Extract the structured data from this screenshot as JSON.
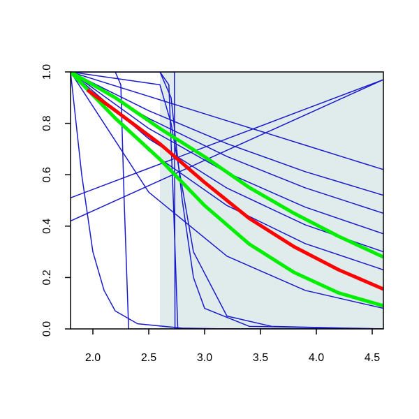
{
  "chart_data": {
    "type": "line",
    "xlim": [
      1.8,
      4.6
    ],
    "ylim": [
      0,
      1
    ],
    "xticks": [
      {
        "value": 2,
        "label": "2.0"
      },
      2.5,
      {
        "value": 3,
        "label": "3.0"
      },
      3.5,
      {
        "value": 4,
        "label": "4.0"
      },
      4.5
    ],
    "yticks": [
      {
        "value": 0,
        "label": "0.0"
      },
      0.2,
      0.4,
      0.6,
      0.8,
      {
        "value": 1,
        "label": "1.0"
      }
    ],
    "shaded_region": [
      2.6,
      4.6
    ],
    "shaded_color": "#e0ecec",
    "series": [
      {
        "color": "#1a1acc",
        "linewidth": 1.5,
        "x": [
          1.8,
          2.5,
          3.2,
          3.9,
          4.6
        ],
        "values": [
          1,
          0.905,
          0.81,
          0.715,
          0.62
        ]
      },
      {
        "color": "#1a1acc",
        "linewidth": 1.5,
        "x": [
          1.8,
          2.5,
          3.2,
          3.9,
          4.6
        ],
        "values": [
          1,
          0.849,
          0.721,
          0.612,
          0.52
        ]
      },
      {
        "color": "#1a1acc",
        "linewidth": 1.5,
        "x": [
          1.8,
          2.5,
          3.2,
          3.9,
          4.6
        ],
        "values": [
          1,
          0.819,
          0.671,
          0.549,
          0.45
        ]
      },
      {
        "color": "#1a1acc",
        "linewidth": 1.5,
        "x": [
          1.8,
          2.5,
          3.2,
          3.9,
          4.6
        ],
        "values": [
          1,
          0.78,
          0.608,
          0.474,
          0.37
        ]
      },
      {
        "color": "#1a1acc",
        "linewidth": 1.5,
        "x": [
          1.8,
          2.5,
          3.2,
          3.9,
          4.6
        ],
        "values": [
          1,
          0.74,
          0.548,
          0.405,
          0.3
        ]
      },
      {
        "color": "#1a1acc",
        "linewidth": 1.5,
        "x": [
          1.8,
          2.5,
          3.2,
          3.9,
          4.6
        ],
        "values": [
          1,
          0.693,
          0.48,
          0.332,
          0.23
        ]
      },
      {
        "color": "#1a1acc",
        "linewidth": 1.5,
        "x": [
          1.8,
          2.5,
          3.2,
          3.9,
          4.6
        ],
        "values": [
          1,
          0.532,
          0.283,
          0.15,
          0.08
        ]
      },
      {
        "color": "#1a1acc",
        "linewidth": 1.5,
        "x": [
          1.8,
          2.5,
          3.2,
          3.9,
          4.6
        ],
        "values": [
          0.51,
          0.625,
          0.74,
          0.855,
          0.97
        ]
      },
      {
        "color": "#1a1acc",
        "linewidth": 1.5,
        "x": [
          1.8,
          2.5,
          3.2,
          3.9,
          4.6
        ],
        "values": [
          0.42,
          0.5575,
          0.695,
          0.8325,
          0.97
        ]
      },
      {
        "color": "#1a1acc",
        "linewidth": 1.5,
        "x": [
          1.8,
          1.9,
          2.0,
          2.1,
          2.2,
          2.4,
          2.8,
          3.2,
          4.6
        ],
        "values": [
          1,
          0.6,
          0.3,
          0.15,
          0.07,
          0.02,
          0.003,
          0,
          0
        ]
      },
      {
        "color": "#1a1acc",
        "linewidth": 1.5,
        "x": [
          1.8,
          2.2,
          2.25,
          2.28,
          2.32,
          4.6
        ],
        "values": [
          1,
          1,
          0.95,
          0.5,
          0,
          0
        ]
      },
      {
        "color": "#1a1acc",
        "linewidth": 1.5,
        "x": [
          1.8,
          2.6,
          2.68,
          2.72,
          2.76,
          4.6
        ],
        "values": [
          1,
          1,
          0.95,
          0.5,
          0,
          0
        ]
      },
      {
        "color": "#1a1acc",
        "linewidth": 1.5,
        "x": [
          1.8,
          2.73,
          2.735,
          4.6
        ],
        "values": [
          1,
          1,
          0,
          0
        ]
      },
      {
        "color": "#1a1acc",
        "linewidth": 1.5,
        "x": [
          1.8,
          2.6,
          2.7,
          2.8,
          2.9,
          3.0,
          3.4,
          4.6
        ],
        "values": [
          1,
          1,
          0.9,
          0.5,
          0.2,
          0.08,
          0.01,
          0
        ]
      },
      {
        "color": "#1a1acc",
        "linewidth": 1.5,
        "x": [
          1.8,
          2.6,
          2.7,
          2.9,
          3.2,
          3.6,
          4.6
        ],
        "values": [
          1,
          0.95,
          0.8,
          0.3,
          0.05,
          0.01,
          0
        ]
      },
      {
        "color": "#00ee00",
        "linewidth": 5,
        "x": [
          1.8,
          2.2,
          2.6,
          3.0,
          3.4,
          3.8,
          4.2,
          4.6
        ],
        "values": [
          1,
          0.9,
          0.78,
          0.67,
          0.55,
          0.45,
          0.36,
          0.28
        ]
      },
      {
        "color": "#00ee00",
        "linewidth": 5,
        "x": [
          1.8,
          2.2,
          2.6,
          3.0,
          3.4,
          3.8,
          4.2,
          4.6
        ],
        "values": [
          1,
          0.82,
          0.66,
          0.48,
          0.33,
          0.22,
          0.14,
          0.09
        ]
      },
      {
        "color": "#ff0000",
        "linewidth": 5,
        "x": [
          1.95,
          2.2,
          2.6,
          3.0,
          3.4,
          3.8,
          4.2,
          4.6
        ],
        "values": [
          0.93,
          0.85,
          0.72,
          0.57,
          0.43,
          0.32,
          0.23,
          0.155
        ]
      }
    ]
  }
}
